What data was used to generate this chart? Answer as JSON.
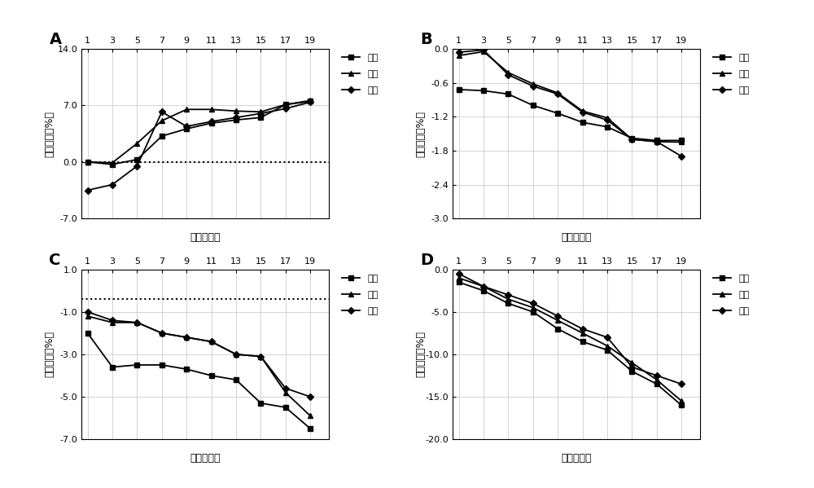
{
  "x_ticks": [
    1,
    3,
    5,
    7,
    9,
    11,
    13,
    15,
    17,
    19
  ],
  "panel_A": {
    "label": "A",
    "low": [
      0.0,
      -0.3,
      0.3,
      3.2,
      4.1,
      4.8,
      5.2,
      5.5,
      7.1,
      7.5
    ],
    "mid": [
      0.0,
      -0.1,
      2.3,
      5.1,
      6.5,
      6.5,
      6.3,
      6.2,
      7.1,
      7.6
    ],
    "high": [
      -3.5,
      -2.8,
      -0.5,
      6.2,
      4.4,
      5.0,
      5.5,
      6.0,
      6.6,
      7.4
    ],
    "ylim": [
      -7.0,
      14.0
    ],
    "yticks": [
      -7.0,
      0.0,
      7.0,
      14.0
    ],
    "dotted_y": 0.0,
    "ylabel": "相对偏差（%）",
    "xlabel": "时间（天）"
  },
  "panel_B": {
    "label": "B",
    "low": [
      -0.72,
      -0.74,
      -0.8,
      -1.0,
      -1.14,
      -1.3,
      -1.38,
      -1.58,
      -1.62,
      -1.62
    ],
    "mid": [
      -0.12,
      -0.05,
      -0.42,
      -0.62,
      -0.78,
      -1.1,
      -1.22,
      -1.6,
      -1.64,
      -1.65
    ],
    "high": [
      -0.06,
      -0.02,
      -0.46,
      -0.66,
      -0.8,
      -1.12,
      -1.26,
      -1.6,
      -1.64,
      -1.9
    ],
    "ylim": [
      -3.0,
      0.0
    ],
    "yticks": [
      -3.0,
      -2.4,
      -1.8,
      -1.2,
      -0.6,
      0.0
    ],
    "dotted_y": null,
    "ylabel": "相对偏差（%）",
    "xlabel": "时间（天）"
  },
  "panel_C": {
    "label": "C",
    "low": [
      -2.0,
      -3.6,
      -3.5,
      -3.5,
      -3.7,
      -4.0,
      -4.2,
      -5.3,
      -5.5,
      -6.5
    ],
    "mid": [
      -1.2,
      -1.5,
      -1.5,
      -2.0,
      -2.2,
      -2.4,
      -3.0,
      -3.1,
      -4.8,
      -5.9
    ],
    "high": [
      -1.0,
      -1.4,
      -1.5,
      -2.0,
      -2.2,
      -2.4,
      -3.0,
      -3.1,
      -4.6,
      -5.0
    ],
    "ylim": [
      -7.0,
      1.0
    ],
    "yticks": [
      -7.0,
      -5.0,
      -3.0,
      -1.0,
      1.0
    ],
    "dotted_y": -0.4,
    "ylabel": "相对偏差（%）",
    "xlabel": "时间（天）"
  },
  "panel_D": {
    "label": "D",
    "low": [
      -1.5,
      -2.5,
      -4.0,
      -5.0,
      -7.0,
      -8.5,
      -9.5,
      -12.0,
      -13.5,
      -16.0
    ],
    "mid": [
      -1.0,
      -2.0,
      -3.5,
      -4.5,
      -6.0,
      -7.5,
      -9.0,
      -11.0,
      -13.0,
      -15.5
    ],
    "high": [
      -0.5,
      -2.0,
      -3.0,
      -4.0,
      -5.5,
      -7.0,
      -8.0,
      -11.5,
      -12.5,
      -13.5
    ],
    "ylim": [
      -20.0,
      0.0
    ],
    "yticks": [
      -20.0,
      -15.0,
      -10.0,
      -5.0,
      0.0
    ],
    "dotted_y": null,
    "ylabel": "相对偏差（%）",
    "xlabel": "时间（天）"
  },
  "legend_labels": [
    "低値",
    "中値",
    "高値"
  ],
  "line_color": "#000000",
  "markers": [
    "s",
    "^",
    "D"
  ],
  "markersize": 4,
  "linewidth": 1.3
}
